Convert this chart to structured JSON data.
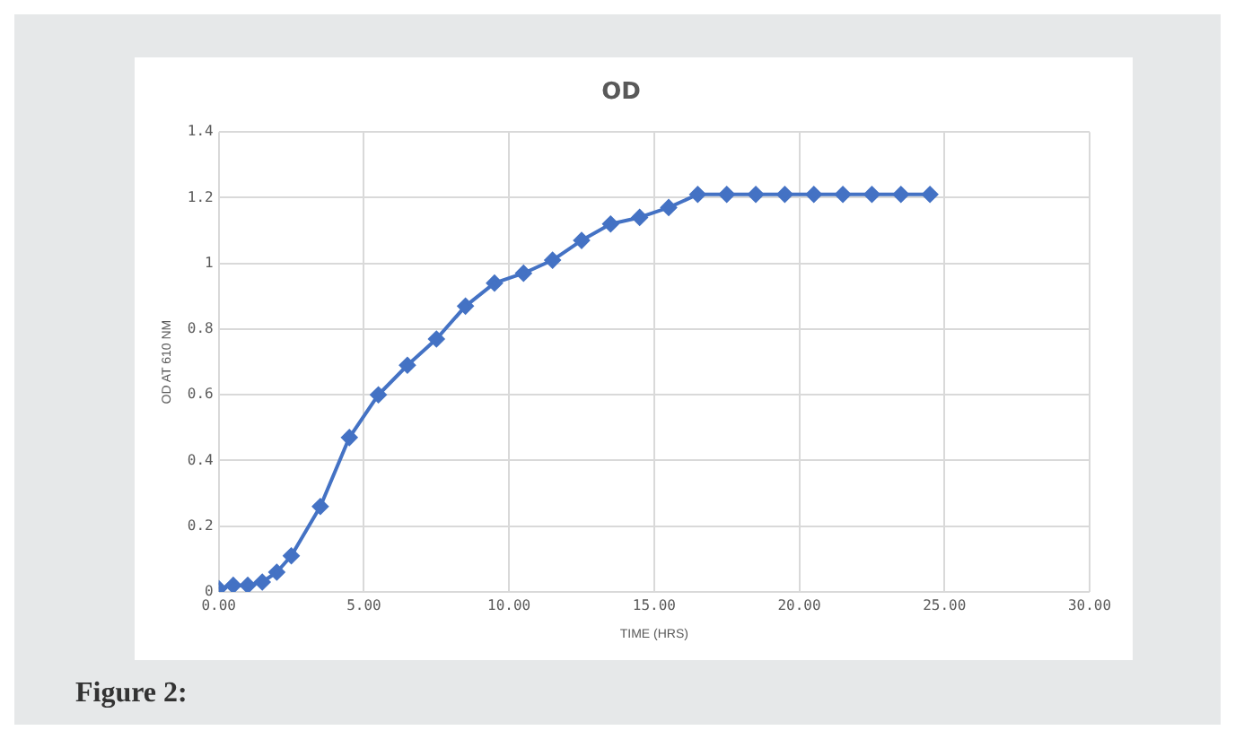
{
  "chart_data": {
    "type": "line",
    "title": "OD",
    "xlabel": "TIME (HRS)",
    "ylabel": "OD AT 610 NM",
    "x": [
      0,
      0.5,
      1,
      1.5,
      2,
      2.5,
      3.5,
      4.5,
      5.5,
      6.5,
      7.5,
      8.5,
      9.5,
      10.5,
      11.5,
      12.5,
      13.5,
      14.5,
      15.5,
      16.5,
      17.5,
      18.5,
      19.5,
      20.5,
      21.5,
      22.5,
      23.5,
      24.5
    ],
    "series": [
      {
        "color": "#4472c4",
        "values": [
          0.01,
          0.02,
          0.02,
          0.03,
          0.06,
          0.11,
          0.26,
          0.47,
          0.6,
          0.69,
          0.77,
          0.87,
          0.94,
          0.97,
          1.01,
          1.07,
          1.12,
          1.14,
          1.17,
          1.21,
          1.21,
          1.21,
          1.21,
          1.21,
          1.21,
          1.21,
          1.21,
          1.21
        ]
      }
    ],
    "xlim": [
      0,
      30
    ],
    "xticks": [
      {
        "value": 0,
        "label": "0.00"
      },
      {
        "value": 5,
        "label": "5.00"
      },
      {
        "value": 10,
        "label": "10.00"
      },
      {
        "value": 15,
        "label": "15.00"
      },
      {
        "value": 20,
        "label": "20.00"
      },
      {
        "value": 25,
        "label": "25.00"
      },
      {
        "value": 30,
        "label": "30.00"
      }
    ],
    "ylim": [
      0,
      1.4
    ],
    "yticks": [
      0,
      0.2,
      0.4,
      0.6,
      0.8,
      1,
      1.2,
      1.4
    ],
    "grid": true,
    "legend": false,
    "marker": "diamond",
    "line_style": "solid",
    "annotations": [
      "Figure 2:"
    ]
  }
}
